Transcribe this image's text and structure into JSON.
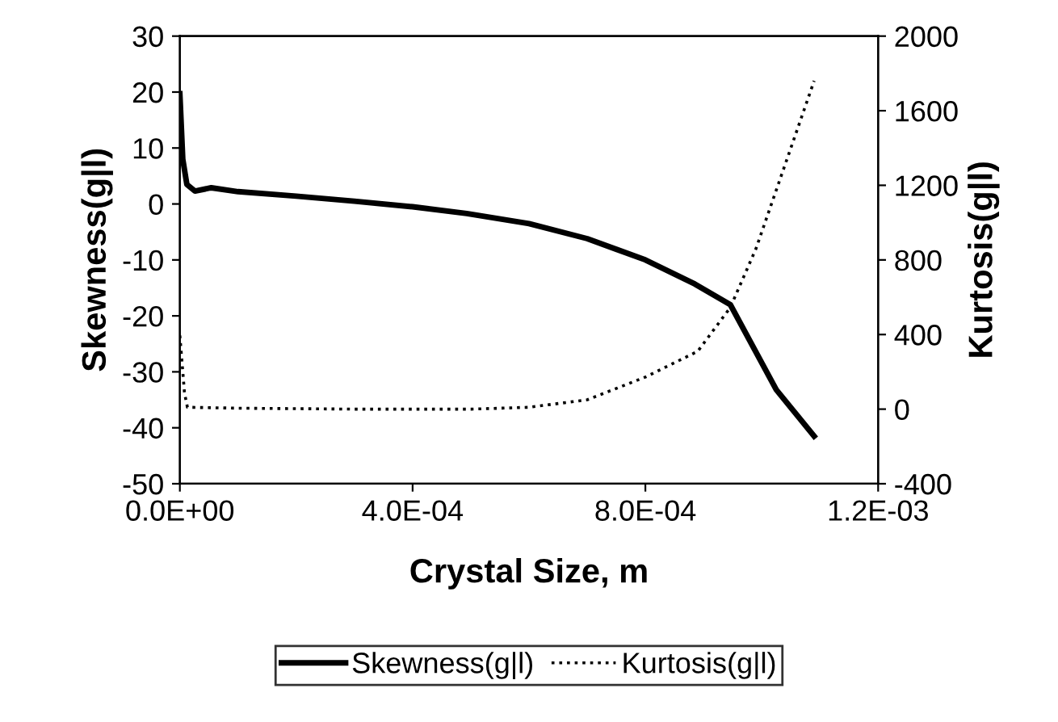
{
  "chart_data": {
    "type": "line",
    "xlabel": "Crystal Size, m",
    "ylabel": "Skewness(g|l)",
    "y2label": "Kurtosis(g|l)",
    "xlim": [
      0,
      0.0012
    ],
    "xticks": [
      {
        "value": 0,
        "label": "0.0E+00"
      },
      {
        "value": 0.0004,
        "label": "4.0E-04"
      },
      {
        "value": 0.0008,
        "label": "8.0E-04"
      },
      {
        "value": 0.0012,
        "label": "1.2E-03"
      }
    ],
    "ylim": [
      -50,
      30
    ],
    "yticks": [
      -50,
      -40,
      -30,
      -20,
      -10,
      0,
      10,
      20,
      30
    ],
    "y2lim": [
      -400,
      2000
    ],
    "y2ticks": [
      -400,
      0,
      400,
      800,
      1200,
      1600,
      2000
    ],
    "legend": "bottom",
    "grid": false,
    "series": [
      {
        "name": "Skewness(g|l)",
        "color": "#000000",
        "line_style": "solid",
        "x": [
          0,
          5e-06,
          1.2e-05,
          2.6e-05,
          5.4e-05,
          0.0001,
          0.0002,
          0.0003,
          0.0004,
          0.000493,
          0.0006,
          0.0007,
          0.0008,
          0.000885,
          0.000946,
          0.001025,
          0.00109
        ],
        "values": [
          19.7,
          8,
          3.5,
          2.3,
          2.9,
          2.2,
          1.4,
          0.5,
          -0.5,
          -1.7,
          -3.5,
          -6.2,
          -10,
          -14.3,
          -18,
          -33.2,
          -41.5
        ]
      },
      {
        "name": "Kurtosis(g|l)",
        "color": "#000000",
        "line_style": "dotted",
        "axis": "y2",
        "x": [
          0,
          8e-06,
          1.3e-05,
          0.0001,
          0.0003,
          0.0005,
          0.0006,
          0.0007,
          0.0008,
          0.00089,
          0.000946,
          0.00099,
          0.001034,
          0.00109
        ],
        "values": [
          395,
          86,
          10,
          5,
          0,
          0,
          10,
          50,
          172,
          310,
          545,
          860,
          1256,
          1760
        ]
      }
    ]
  }
}
